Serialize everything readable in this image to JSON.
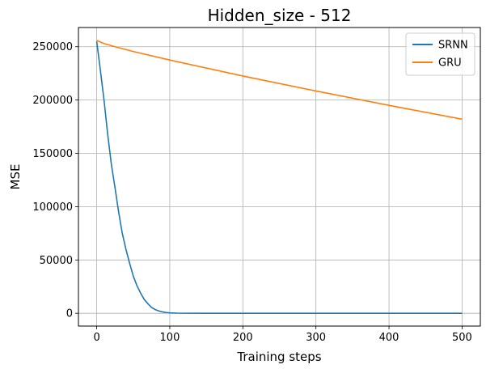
{
  "chart_data": {
    "type": "line",
    "title": "Hidden_size - 512",
    "xlabel": "Training steps",
    "ylabel": "MSE",
    "xlim": [
      -25,
      525
    ],
    "ylim": [
      -12000,
      268000
    ],
    "xticks": [
      0,
      100,
      200,
      300,
      400,
      500
    ],
    "yticks": [
      0,
      50000,
      100000,
      150000,
      200000,
      250000
    ],
    "grid": true,
    "legend_position": "top-right",
    "series": [
      {
        "name": "SRNN",
        "color": "#1f77b4",
        "x": [
          0,
          5,
          10,
          15,
          20,
          25,
          30,
          35,
          40,
          45,
          50,
          55,
          60,
          65,
          70,
          75,
          80,
          85,
          90,
          95,
          100,
          110,
          120,
          150,
          200,
          300,
          400,
          500
        ],
        "y": [
          255000,
          228000,
          200000,
          168000,
          140000,
          118000,
          95000,
          75000,
          60000,
          47000,
          35000,
          26000,
          19000,
          13000,
          9000,
          5500,
          3500,
          2200,
          1300,
          700,
          400,
          150,
          50,
          0,
          0,
          0,
          0,
          0
        ]
      },
      {
        "name": "GRU",
        "color": "#ff7f0e",
        "x": [
          0,
          3,
          10,
          25,
          50,
          100,
          200,
          300,
          400,
          500
        ],
        "y": [
          256000,
          255000,
          253000,
          250000,
          245500,
          237500,
          222500,
          208500,
          195000,
          182000
        ]
      }
    ]
  }
}
